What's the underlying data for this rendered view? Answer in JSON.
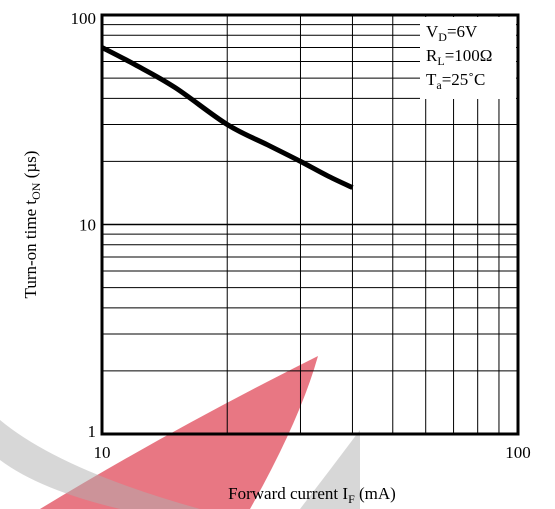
{
  "chart_data": {
    "type": "line",
    "x_scale": "log",
    "y_scale": "log",
    "xlim": [
      10,
      100
    ],
    "ylim": [
      1,
      100
    ],
    "x_ticks": [
      "10",
      "100"
    ],
    "y_ticks": [
      "1",
      "10",
      "100"
    ],
    "xlabel": {
      "prefix": "Forward current I",
      "sub": "F",
      "suffix": " (mA)"
    },
    "ylabel": {
      "prefix": "Turn-on time t",
      "sub": "ON",
      "suffix": " (µs)"
    },
    "conditions": [
      {
        "prefix": "V",
        "sub": "D",
        "suffix": "=6V"
      },
      {
        "prefix": "R",
        "sub": "L",
        "suffix": "=100Ω"
      },
      {
        "prefix": "T",
        "sub": "a",
        "suffix": "=25˚C"
      }
    ],
    "grid": true,
    "series": [
      {
        "x": [
          10,
          12,
          15,
          20,
          25,
          30,
          35,
          40
        ],
        "y": [
          70,
          58,
          45,
          30,
          24,
          20,
          17,
          15
        ],
        "color": "#000000"
      }
    ]
  },
  "watermark": {
    "colors": [
      "#e04a5a",
      "#b0b0b0"
    ]
  }
}
